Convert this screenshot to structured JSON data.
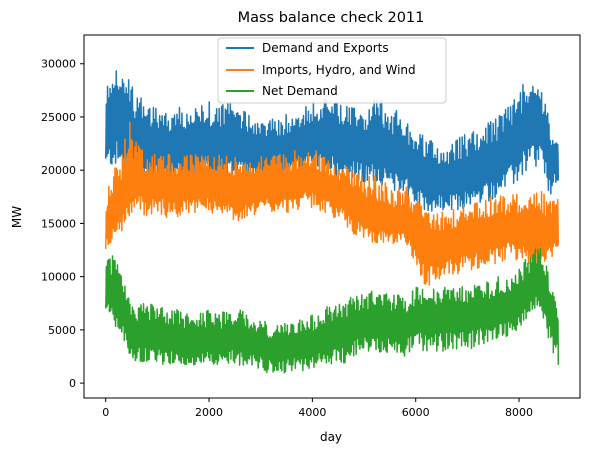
{
  "chart_data": {
    "type": "line",
    "title": "Mass balance check 2011",
    "xlabel": "day",
    "ylabel": "MW",
    "xlim": [
      -420,
      9180
    ],
    "ylim": [
      -1400,
      32700
    ],
    "xticks": [
      0,
      2000,
      4000,
      6000,
      8000
    ],
    "xtick_labels": [
      "0",
      "2000",
      "4000",
      "6000",
      "8000"
    ],
    "yticks": [
      0,
      5000,
      10000,
      15000,
      20000,
      25000,
      30000
    ],
    "ytick_labels": [
      "0",
      "5000",
      "10000",
      "15000",
      "20000",
      "25000",
      "30000"
    ],
    "grid": false,
    "legend_position": "top-center",
    "x_range": [
      0,
      8760
    ],
    "series": [
      {
        "name": "Demand and Exports",
        "color": "#1f77b4",
        "x": [
          0,
          150,
          300,
          450,
          600,
          800,
          1000,
          1200,
          1400,
          1600,
          1800,
          2000,
          2200,
          2400,
          2600,
          2800,
          3000,
          3200,
          3400,
          3600,
          3800,
          4000,
          4200,
          4400,
          4600,
          4800,
          5000,
          5200,
          5400,
          5600,
          5800,
          6000,
          6200,
          6400,
          6600,
          6800,
          7000,
          7200,
          7400,
          7600,
          7800,
          8000,
          8200,
          8400,
          8600,
          8760
        ],
        "center": [
          23500,
          25000,
          24500,
          23500,
          23000,
          22500,
          22300,
          22000,
          22200,
          22000,
          22300,
          22500,
          22000,
          22500,
          22200,
          22000,
          21700,
          21500,
          21700,
          22000,
          22500,
          22800,
          23000,
          23000,
          22500,
          22500,
          22000,
          22000,
          21500,
          21000,
          21000,
          20000,
          19500,
          19000,
          19000,
          19200,
          19500,
          20000,
          20500,
          21000,
          22000,
          23000,
          24500,
          25000,
          21000,
          21000
        ],
        "low": [
          19500,
          20500,
          19500,
          19000,
          19000,
          18500,
          19000,
          18500,
          19000,
          19000,
          19000,
          19000,
          18500,
          19000,
          19000,
          19000,
          18500,
          18500,
          19000,
          19000,
          19500,
          20000,
          20000,
          19500,
          19000,
          19000,
          18500,
          19000,
          18500,
          18000,
          18000,
          16500,
          16000,
          16000,
          16000,
          16000,
          16500,
          16500,
          17000,
          17500,
          18000,
          19000,
          20000,
          20000,
          17500,
          18000
        ],
        "high": [
          27500,
          31000,
          30000,
          28500,
          27000,
          26500,
          26000,
          25500,
          26000,
          25500,
          26000,
          26500,
          26000,
          26500,
          26000,
          25500,
          25000,
          25000,
          25000,
          25500,
          26000,
          26500,
          27000,
          26500,
          26000,
          26000,
          25500,
          27000,
          27500,
          26000,
          24500,
          24000,
          23000,
          22500,
          22500,
          23000,
          23500,
          24000,
          24500,
          25000,
          26500,
          27500,
          29500,
          28500,
          24500,
          23000
        ]
      },
      {
        "name": "Imports, Hydro, and Wind",
        "color": "#ff7f0e",
        "x": [
          0,
          150,
          300,
          450,
          600,
          800,
          1000,
          1200,
          1400,
          1600,
          1800,
          2000,
          2200,
          2400,
          2600,
          2800,
          3000,
          3200,
          3400,
          3600,
          3800,
          4000,
          4200,
          4400,
          4600,
          4800,
          5000,
          5200,
          5400,
          5600,
          5800,
          6000,
          6200,
          6400,
          6600,
          6800,
          7000,
          7200,
          7400,
          7600,
          7800,
          8000,
          8200,
          8400,
          8600,
          8760
        ],
        "center": [
          14500,
          16500,
          17000,
          18500,
          19000,
          18500,
          18500,
          18500,
          18000,
          18500,
          18500,
          18500,
          18000,
          18000,
          17500,
          18000,
          18500,
          18500,
          18500,
          18500,
          19000,
          19000,
          18500,
          18000,
          17500,
          16500,
          16000,
          15500,
          15500,
          15000,
          15500,
          14000,
          13000,
          12500,
          13000,
          13000,
          13500,
          13500,
          14000,
          14000,
          14500,
          14500,
          14000,
          14000,
          14000,
          14500
        ],
        "low": [
          12000,
          13500,
          14000,
          15500,
          16500,
          15500,
          16000,
          15500,
          15500,
          16000,
          16000,
          16000,
          15500,
          15500,
          15000,
          15500,
          16000,
          16000,
          16000,
          16000,
          16500,
          16500,
          16000,
          15500,
          15000,
          14000,
          13500,
          13000,
          13000,
          12500,
          13000,
          10500,
          9000,
          9000,
          10000,
          10000,
          10500,
          10500,
          11000,
          11000,
          11500,
          11500,
          11000,
          11000,
          11000,
          12000
        ],
        "high": [
          17500,
          20000,
          21000,
          25000,
          22500,
          21500,
          21500,
          21500,
          21000,
          21500,
          21500,
          22000,
          21500,
          21500,
          21000,
          21000,
          21500,
          21500,
          21500,
          22000,
          22000,
          22000,
          21500,
          21000,
          20500,
          20000,
          19500,
          19500,
          19000,
          18500,
          18500,
          17500,
          16500,
          16000,
          16500,
          16500,
          17000,
          17000,
          17500,
          17500,
          18000,
          18000,
          17500,
          18000,
          18000,
          18500
        ]
      },
      {
        "name": "Net Demand",
        "color": "#2ca02c",
        "x": [
          0,
          150,
          300,
          450,
          600,
          800,
          1000,
          1200,
          1400,
          1600,
          1800,
          2000,
          2200,
          2400,
          2600,
          2800,
          3000,
          3200,
          3400,
          3600,
          3800,
          4000,
          4200,
          4400,
          4600,
          4800,
          5000,
          5200,
          5400,
          5600,
          5800,
          6000,
          6200,
          6400,
          6600,
          6800,
          7000,
          7200,
          7400,
          7600,
          7800,
          8000,
          8200,
          8400,
          8600,
          8760
        ],
        "center": [
          9000,
          8500,
          7500,
          5000,
          4500,
          4500,
          4300,
          4000,
          4200,
          3800,
          3800,
          4000,
          3800,
          4200,
          4200,
          3800,
          3500,
          3200,
          3200,
          3500,
          3500,
          3700,
          4200,
          4500,
          4500,
          5500,
          5500,
          5800,
          5500,
          5500,
          5200,
          6000,
          6000,
          6000,
          6000,
          6200,
          6000,
          6500,
          6500,
          7000,
          7000,
          8000,
          9000,
          10000,
          7000,
          5500
        ],
        "low": [
          6500,
          5000,
          3500,
          2500,
          2000,
          2000,
          1800,
          1500,
          1800,
          1500,
          1500,
          1500,
          1500,
          1800,
          1500,
          1500,
          1200,
          800,
          800,
          1000,
          1000,
          1000,
          1500,
          1800,
          1800,
          2500,
          2800,
          3000,
          2800,
          2800,
          2500,
          3000,
          3000,
          3000,
          3000,
          3200,
          3000,
          3500,
          3500,
          4000,
          4500,
          5000,
          6000,
          7000,
          3000,
          1500
        ],
        "high": [
          11500,
          12500,
          11000,
          8500,
          7500,
          7500,
          7500,
          7000,
          7000,
          6500,
          6500,
          7000,
          6500,
          7000,
          7000,
          6500,
          6000,
          5500,
          5500,
          6000,
          6000,
          6500,
          7000,
          7500,
          7500,
          8500,
          8500,
          8800,
          8500,
          8500,
          8000,
          9000,
          9000,
          9000,
          9000,
          9200,
          9000,
          9500,
          9500,
          10000,
          10500,
          11000,
          12000,
          13000,
          10000,
          6500
        ]
      }
    ]
  }
}
